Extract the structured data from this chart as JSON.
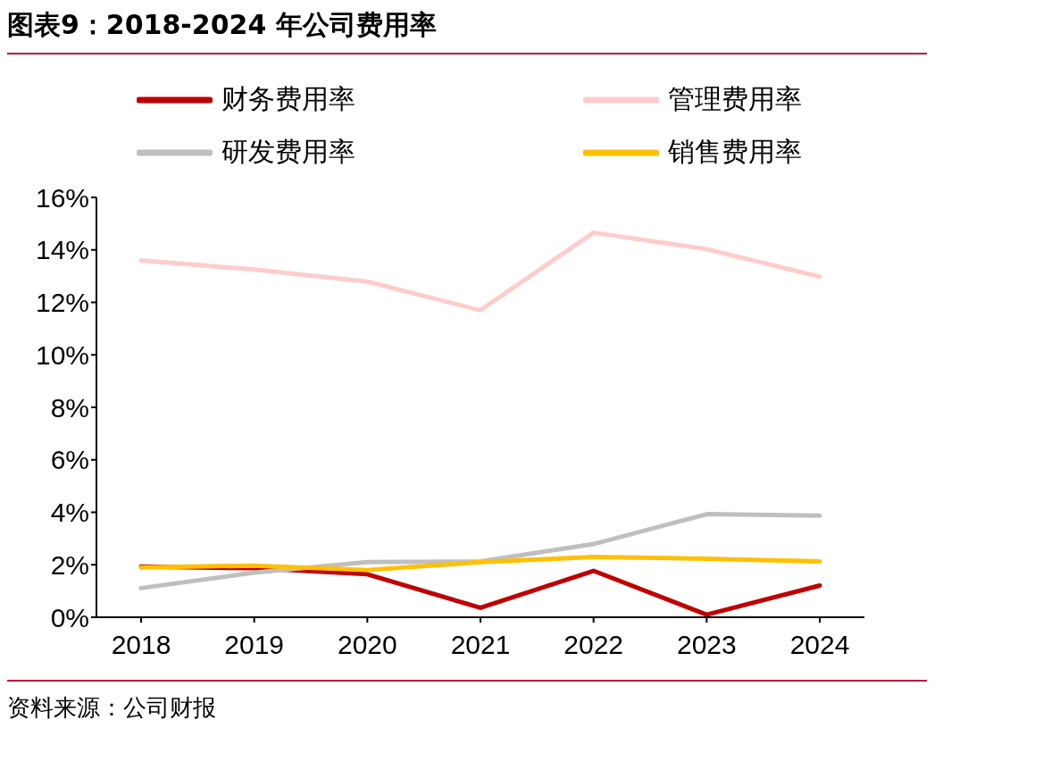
{
  "chart_data": {
    "type": "line",
    "title": "图表9：2018-2024 年公司费用率",
    "categories": [
      "2018",
      "2019",
      "2020",
      "2021",
      "2022",
      "2023",
      "2024"
    ],
    "series": [
      {
        "name": "财务费用率",
        "color": "#c00000",
        "values": [
          1.93,
          1.87,
          1.64,
          0.36,
          1.77,
          0.1,
          1.21
        ]
      },
      {
        "name": "管理费用率",
        "color": "#ffcccc",
        "values": [
          13.6,
          13.25,
          12.79,
          11.7,
          14.66,
          14.03,
          12.98
        ]
      },
      {
        "name": "研发费用率",
        "color": "#bfbfbf",
        "values": [
          1.11,
          1.7,
          2.1,
          2.13,
          2.79,
          3.93,
          3.87
        ]
      },
      {
        "name": "销售费用率",
        "color": "#ffc000",
        "values": [
          1.9,
          1.97,
          1.8,
          2.1,
          2.3,
          2.23,
          2.13
        ]
      }
    ],
    "ylim": [
      0,
      16
    ],
    "yticks": [
      {
        "value": 0,
        "label": "0%"
      },
      {
        "value": 2,
        "label": "2%"
      },
      {
        "value": 4,
        "label": "4%"
      },
      {
        "value": 6,
        "label": "6%"
      },
      {
        "value": 8,
        "label": "8%"
      },
      {
        "value": 10,
        "label": "10%"
      },
      {
        "value": 12,
        "label": "12%"
      },
      {
        "value": 14,
        "label": "14%"
      },
      {
        "value": 16,
        "label": "16%"
      }
    ],
    "grid": false,
    "legend": "top",
    "marker": "none",
    "line_style": "solid",
    "annotations": [
      "资料来源：公司财报"
    ]
  }
}
